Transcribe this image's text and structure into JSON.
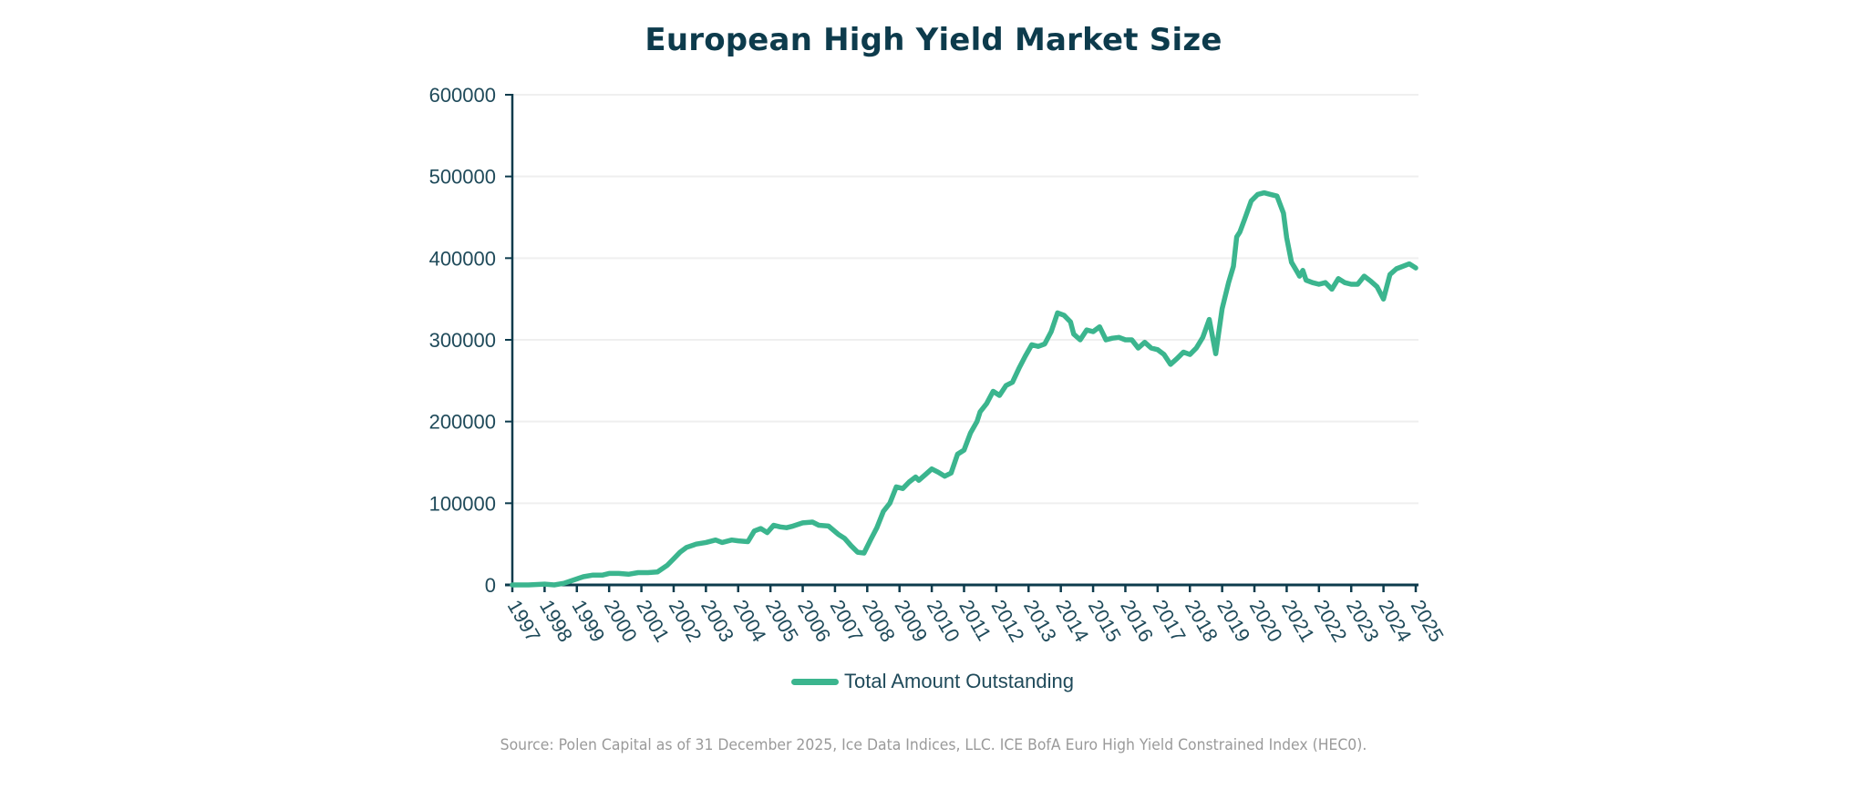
{
  "colors": {
    "line": "#3bb58e",
    "axis": "#0d3b4c",
    "grid": "#efefef",
    "title": "#0d3b4c",
    "source": "#9a9a9a"
  },
  "chart_data": {
    "type": "line",
    "title": "European High Yield Market Size",
    "xlabel": "",
    "ylabel": "",
    "ylim": [
      0,
      600000
    ],
    "xlim": [
      1997,
      2025
    ],
    "grid": true,
    "legend_position": "bottom-center",
    "yticks": [
      "0",
      "100000",
      "200000",
      "300000",
      "400000",
      "500000",
      "600000"
    ],
    "ytick_values": [
      0,
      100000,
      200000,
      300000,
      400000,
      500000,
      600000
    ],
    "xticks": [
      "1997",
      "1998",
      "1999",
      "2000",
      "2001",
      "2002",
      "2003",
      "2004",
      "2005",
      "2006",
      "2007",
      "2008",
      "2009",
      "2010",
      "2011",
      "2012",
      "2013",
      "2014",
      "2015",
      "2016",
      "2017",
      "2018",
      "2019",
      "2020",
      "2021",
      "2022",
      "2023",
      "2024",
      "2025"
    ],
    "series": [
      {
        "name": "Total Amount Outstanding",
        "x": [
          1997.0,
          1997.5,
          1998.0,
          1998.3,
          1998.6,
          1998.9,
          1999.2,
          1999.5,
          1999.8,
          2000.0,
          2000.3,
          2000.6,
          2000.9,
          2001.2,
          2001.5,
          2001.8,
          2002.0,
          2002.2,
          2002.4,
          2002.7,
          2003.0,
          2003.3,
          2003.5,
          2003.8,
          2004.0,
          2004.3,
          2004.5,
          2004.7,
          2004.9,
          2005.1,
          2005.3,
          2005.5,
          2005.7,
          2006.0,
          2006.3,
          2006.5,
          2006.8,
          2007.1,
          2007.3,
          2007.5,
          2007.7,
          2007.9,
          2008.1,
          2008.3,
          2008.5,
          2008.7,
          2008.9,
          2009.1,
          2009.3,
          2009.5,
          2009.6,
          2009.8,
          2010.0,
          2010.2,
          2010.4,
          2010.6,
          2010.8,
          2011.0,
          2011.2,
          2011.4,
          2011.5,
          2011.7,
          2011.9,
          2012.1,
          2012.3,
          2012.5,
          2012.7,
          2012.9,
          2013.1,
          2013.3,
          2013.5,
          2013.7,
          2013.9,
          2014.1,
          2014.3,
          2014.4,
          2014.6,
          2014.8,
          2015.0,
          2015.2,
          2015.4,
          2015.6,
          2015.8,
          2016.0,
          2016.2,
          2016.4,
          2016.6,
          2016.8,
          2017.0,
          2017.2,
          2017.4,
          2017.6,
          2017.8,
          2018.0,
          2018.2,
          2018.4,
          2018.6,
          2018.8,
          2019.0,
          2019.2,
          2019.35,
          2019.45,
          2019.55,
          2019.7,
          2019.9,
          2020.1,
          2020.3,
          2020.5,
          2020.7,
          2020.9,
          2021.0,
          2021.15,
          2021.3,
          2021.4,
          2021.5,
          2021.6,
          2021.8,
          2022.0,
          2022.2,
          2022.4,
          2022.6,
          2022.8,
          2023.0,
          2023.2,
          2023.4,
          2023.6,
          2023.8,
          2024.0,
          2024.2,
          2024.4,
          2024.6,
          2024.8,
          2025.0
        ],
        "values": [
          0,
          0,
          1000,
          0,
          2000,
          6000,
          10000,
          12000,
          12000,
          14000,
          14000,
          13000,
          15000,
          15000,
          16000,
          24000,
          32000,
          40000,
          46000,
          50000,
          52000,
          55000,
          52000,
          55000,
          54000,
          53000,
          66000,
          69000,
          64000,
          73000,
          71000,
          70000,
          72000,
          76000,
          77000,
          73000,
          72000,
          62000,
          57000,
          48000,
          40000,
          39000,
          55000,
          70000,
          90000,
          100000,
          120000,
          118000,
          126000,
          132000,
          128000,
          135000,
          142000,
          138000,
          133000,
          137000,
          160000,
          165000,
          186000,
          200000,
          212000,
          222000,
          237000,
          232000,
          244000,
          248000,
          265000,
          280000,
          294000,
          292000,
          295000,
          310000,
          333000,
          330000,
          322000,
          307000,
          300000,
          312000,
          310000,
          316000,
          300000,
          302000,
          303000,
          300000,
          300000,
          290000,
          297000,
          290000,
          288000,
          282000,
          270000,
          277000,
          285000,
          282000,
          290000,
          303000,
          325000,
          283000,
          338000,
          370000,
          390000,
          426000,
          432000,
          448000,
          470000,
          478000,
          480000,
          478000,
          476000,
          455000,
          425000,
          395000,
          385000,
          378000,
          385000,
          373000,
          370000,
          368000,
          370000,
          362000,
          375000,
          370000,
          368000,
          368000,
          378000,
          372000,
          365000,
          350000,
          380000,
          387000,
          390000,
          393000,
          388000
        ]
      }
    ]
  },
  "legend": {
    "label": "Total Amount Outstanding"
  },
  "footer": {
    "source": "Source: Polen Capital as of 31 December 2025, Ice Data Indices, LLC. ICE BofA Euro High Yield Constrained Index (HEC0)."
  }
}
